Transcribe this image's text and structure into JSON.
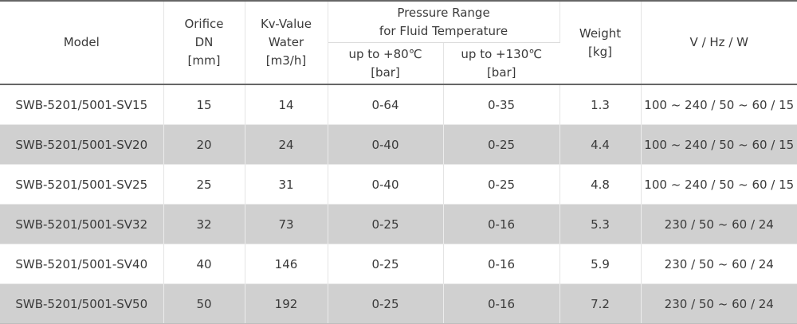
{
  "header": {
    "model": "Model",
    "orifice": [
      "Orifice",
      "DN",
      "[mm]"
    ],
    "kv": [
      "Kv-Value",
      "Water",
      "[m3/h]"
    ],
    "pressure": [
      "Pressure Range",
      "for Fluid Temperature"
    ],
    "temp80": [
      "up to +80℃",
      "[bar]"
    ],
    "temp130": [
      "up to +130℃",
      "[bar]"
    ],
    "weight": [
      "Weight",
      "[kg]"
    ],
    "power": "V / Hz / W"
  },
  "rows": [
    {
      "model": "SWB-5201/5001-SV15",
      "dn": "15",
      "kv": "14",
      "p80": "0-64",
      "p130": "0-35",
      "weight": "1.3",
      "power": "100 ~ 240 / 50 ~ 60 / 15"
    },
    {
      "model": "SWB-5201/5001-SV20",
      "dn": "20",
      "kv": "24",
      "p80": "0-40",
      "p130": "0-25",
      "weight": "4.4",
      "power": "100 ~ 240 / 50 ~ 60 / 15"
    },
    {
      "model": "SWB-5201/5001-SV25",
      "dn": "25",
      "kv": "31",
      "p80": "0-40",
      "p130": "0-25",
      "weight": "4.8",
      "power": "100 ~ 240 / 50 ~ 60 / 15"
    },
    {
      "model": "SWB-5201/5001-SV32",
      "dn": "32",
      "kv": "73",
      "p80": "0-25",
      "p130": "0-16",
      "weight": "5.3",
      "power": "230 / 50 ~ 60 / 24"
    },
    {
      "model": "SWB-5201/5001-SV40",
      "dn": "40",
      "kv": "146",
      "p80": "0-25",
      "p130": "0-16",
      "weight": "5.9",
      "power": "230 / 50 ~ 60 / 24"
    },
    {
      "model": "SWB-5201/5001-SV50",
      "dn": "50",
      "kv": "192",
      "p80": "0-25",
      "p130": "0-16",
      "weight": "7.2",
      "power": "230 / 50 ~ 60 / 24"
    }
  ]
}
